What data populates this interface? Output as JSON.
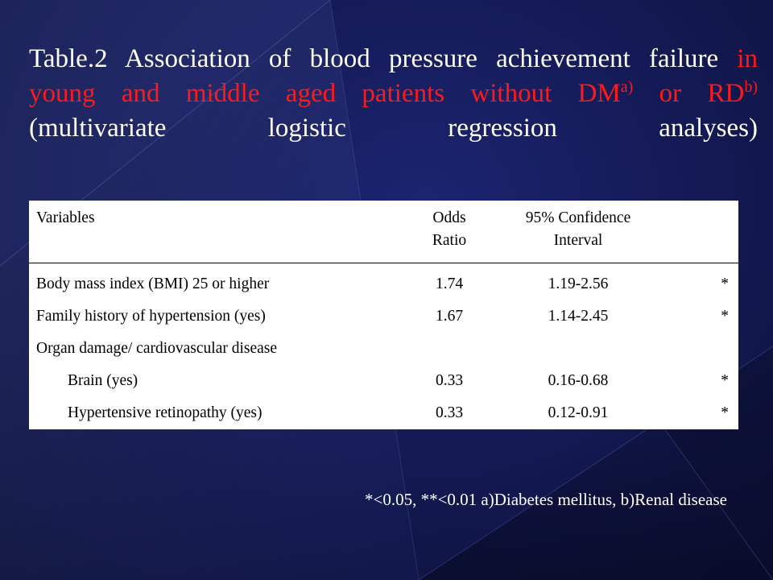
{
  "slide": {
    "title": {
      "line1_white": "Table.2 Association of blood pressure achievement failure",
      "line1_red": "in",
      "line2_red_a": "young and middle aged patients without DM",
      "sup_a": "a)",
      "line2_red_b": " or RD",
      "sup_b": "b)",
      "line3": "(multivariate logistic regression analyses)"
    },
    "table": {
      "headers": {
        "variables": "Variables",
        "odds_ratio_1": "Odds",
        "odds_ratio_2": "Ratio",
        "ci_1": "95% Confidence",
        "ci_2": "Interval",
        "sig": ""
      },
      "rows": [
        {
          "variable": "Body mass index (BMI) 25 or higher",
          "or": "1.74",
          "ci": "1.19-2.56",
          "sig": "*"
        },
        {
          "variable": "Family history of hypertension (yes)",
          "or": "1.67",
          "ci": "1.14-2.45",
          "sig": "*"
        },
        {
          "variable": "Organ damage/ cardiovascular disease",
          "or": "",
          "ci": "",
          "sig": ""
        },
        {
          "variable": "Brain (yes)",
          "or": "0.33",
          "ci": "0.16-0.68",
          "sig": "*"
        },
        {
          "variable": "Hypertensive retinopathy (yes)",
          "or": "0.33",
          "ci": "0.12-0.91",
          "sig": "*"
        }
      ]
    },
    "footnote": "*<0.05, **<0.01  a)Diabetes mellitus, b)Renal disease",
    "colors": {
      "background": "#141a55",
      "title_text": "#ffffff",
      "highlight_text": "#ff1a1a",
      "table_background": "#ffffff"
    }
  }
}
